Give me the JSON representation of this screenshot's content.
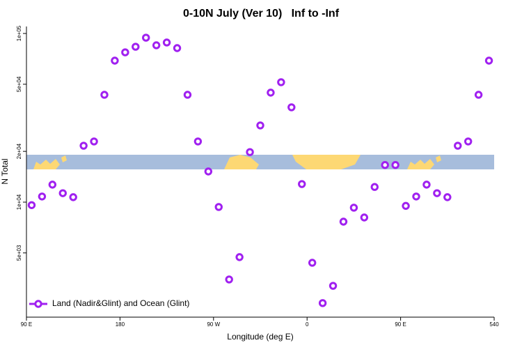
{
  "chart_data": {
    "type": "scatter",
    "title": "0-10N July (Ver 10)   Inf to -Inf",
    "x_label": "Longitude (deg E)",
    "y_label": "N Total",
    "log_y": true,
    "legend": "bottom-left",
    "xlim": [
      90,
      540
    ],
    "ylim": [
      2080,
      110000
    ],
    "xticks": [
      {
        "value": 90,
        "label": "90 E"
      },
      180,
      {
        "value": 270,
        "label": "90 W"
      },
      {
        "value": 360,
        "label": "0"
      },
      {
        "value": 450,
        "label": "90 E"
      },
      540
    ],
    "yticks": [
      {
        "value": 5000,
        "label": "5e+03"
      },
      {
        "value": 10000,
        "label": "1e+04"
      },
      {
        "value": 20000,
        "label": "2e+04"
      },
      {
        "value": 50000,
        "label": "5e+04"
      },
      {
        "value": 100000,
        "label": "1e+05"
      }
    ],
    "series": [
      {
        "name": "Land (Nadir&Glint) and Ocean (Glint)",
        "color": "#a020f0",
        "x": [
          95,
          105,
          115,
          125,
          135,
          145,
          155,
          165,
          175,
          185,
          195,
          205,
          215,
          225,
          235,
          245,
          255,
          265,
          275,
          285,
          295,
          305,
          315,
          325,
          335,
          345,
          355,
          365,
          375,
          385,
          395,
          405,
          415,
          425,
          435,
          445,
          455,
          465,
          475,
          485,
          495,
          505,
          515,
          525,
          535
        ],
        "values": [
          9600,
          10800,
          12700,
          11300,
          10700,
          21600,
          22900,
          43300,
          69000,
          77300,
          83400,
          94400,
          85100,
          88400,
          81900,
          43300,
          22900,
          15200,
          9360,
          3480,
          4720,
          19800,
          28500,
          44600,
          51400,
          36500,
          12800,
          4370,
          2520,
          3190,
          7660,
          9270,
          8110,
          12300,
          16600,
          16600,
          9500,
          10800,
          12700,
          11300,
          10700,
          21600,
          22900,
          43300,
          69000
        ]
      }
    ]
  }
}
